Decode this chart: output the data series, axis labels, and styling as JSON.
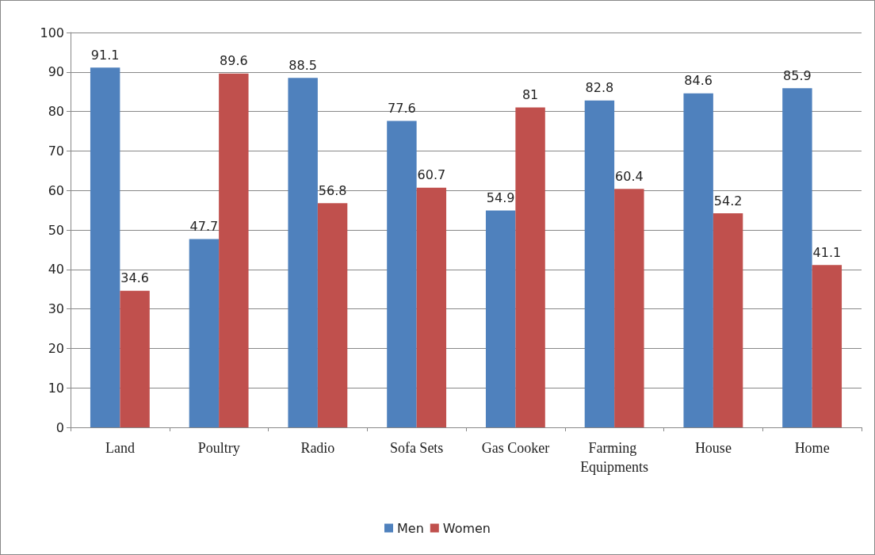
{
  "chart_data": {
    "type": "bar",
    "categories": [
      "Land",
      "Poultry",
      "Radio",
      "Sofa Sets",
      "Gas Cooker",
      "Farming Equipments",
      "House",
      "Home"
    ],
    "series": [
      {
        "name": "Men",
        "color": "#4f81bd",
        "values": [
          91.1,
          47.7,
          88.5,
          77.6,
          54.9,
          82.8,
          84.6,
          85.9
        ]
      },
      {
        "name": "Women",
        "color": "#c0504d",
        "values": [
          34.6,
          89.6,
          56.8,
          60.7,
          81,
          60.4,
          54.2,
          41.1
        ]
      }
    ],
    "ylim": [
      0,
      100
    ],
    "yticks": [
      0,
      10,
      20,
      30,
      40,
      50,
      60,
      70,
      80,
      90,
      100
    ],
    "grid": "y",
    "legend": "bottom",
    "data_labels": true
  }
}
